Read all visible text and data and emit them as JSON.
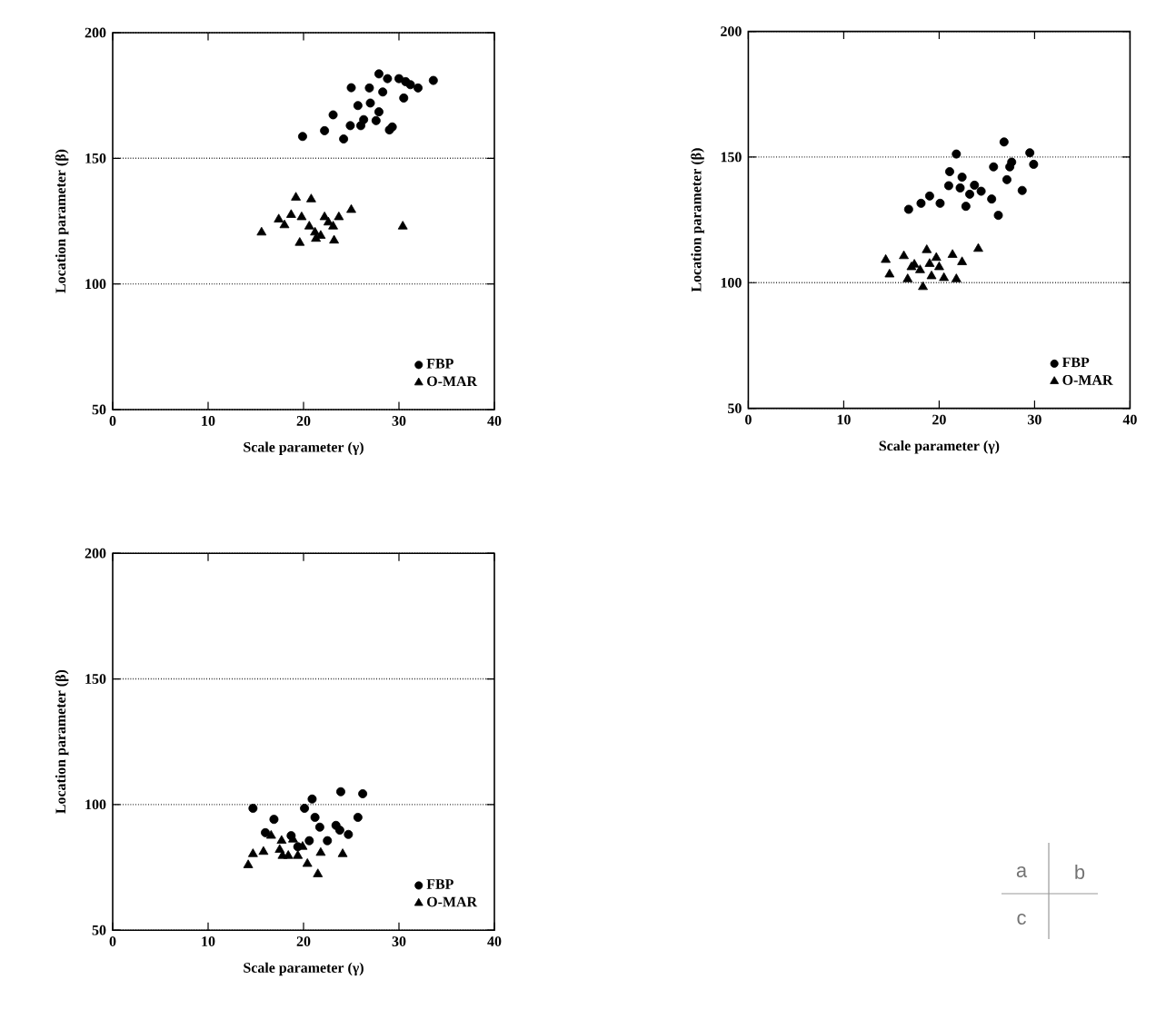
{
  "chart_data": [
    {
      "type": "scatter",
      "xlabel": "Scale parameter (γ)",
      "ylabel": "Location parameter (β)",
      "xlim": [
        0,
        40
      ],
      "ylim": [
        50,
        200
      ],
      "xticks": [
        0,
        10,
        20,
        30,
        40
      ],
      "yticks": [
        50,
        100,
        150,
        200
      ],
      "grid": "y",
      "legend": "bottom right",
      "series": [
        {
          "name": "FBP",
          "color": "#000000",
          "marker": "circle",
          "x": [
            19.9,
            22.2,
            23.1,
            24.2,
            25.0,
            24.9,
            25.7,
            26.3,
            26.9,
            27.0,
            27.6,
            27.9,
            27.9,
            28.3,
            28.8,
            29.0,
            29.3,
            30.0,
            30.7,
            30.5,
            31.2,
            32.0,
            33.6,
            26.0
          ],
          "values": [
            158.7,
            161,
            167.3,
            157.7,
            178.1,
            163,
            171,
            165.4,
            178,
            172,
            165,
            168.5,
            183.6,
            176.4,
            181.7,
            161.3,
            162.5,
            181.7,
            180.5,
            174,
            179.3,
            178,
            181,
            163
          ]
        },
        {
          "name": "O-MAR",
          "color": "#000000",
          "marker": "triangle",
          "x": [
            15.6,
            19.2,
            20.8,
            17.4,
            18.0,
            18.7,
            19.8,
            20.6,
            19.6,
            21.2,
            22.2,
            21.8,
            23.1,
            23.2,
            23.7,
            25.0,
            30.4,
            22.6,
            21.3
          ],
          "values": [
            120.5,
            134.4,
            133.7,
            125.7,
            123.4,
            127.5,
            126.6,
            122.9,
            116.4,
            120.5,
            126.6,
            119.2,
            122.9,
            117.3,
            126.6,
            129.5,
            122.9,
            124.5,
            118
          ]
        }
      ]
    },
    {
      "type": "scatter",
      "xlabel": "Scale parameter (γ)",
      "ylabel": "Location parameter (β)",
      "xlim": [
        0,
        40
      ],
      "ylim": [
        50,
        200
      ],
      "xticks": [
        0,
        10,
        20,
        30,
        40
      ],
      "yticks": [
        50,
        100,
        150,
        200
      ],
      "grid": "y",
      "legend": "bottom right",
      "series": [
        {
          "name": "FBP",
          "color": "#000000",
          "marker": "circle",
          "x": [
            16.8,
            18.1,
            19.0,
            20.1,
            21.1,
            21.0,
            21.8,
            22.4,
            22.2,
            22.8,
            23.2,
            23.7,
            24.4,
            25.7,
            25.5,
            26.2,
            26.8,
            27.1,
            27.4,
            27.6,
            28.7,
            29.5,
            29.9
          ],
          "values": [
            129.2,
            131.6,
            134.5,
            131.6,
            144.2,
            138.6,
            151.2,
            142,
            137.7,
            130.4,
            135.2,
            138.8,
            136.4,
            146.1,
            133.3,
            126.8,
            156,
            141,
            146.1,
            148,
            136.7,
            151.7,
            147.1
          ]
        },
        {
          "name": "O-MAR",
          "color": "#000000",
          "marker": "triangle",
          "x": [
            14.4,
            14.8,
            16.3,
            16.7,
            17.1,
            18.0,
            18.3,
            18.7,
            19.0,
            19.2,
            19.7,
            20.0,
            20.5,
            21.4,
            21.8,
            22.4,
            24.1,
            17.4
          ],
          "values": [
            109.1,
            103.3,
            110.6,
            101.4,
            106.2,
            105,
            98.3,
            113,
            107.5,
            102.6,
            109.9,
            106.2,
            101.9,
            111.1,
            101.4,
            108.2,
            113.5,
            107.2
          ]
        }
      ]
    },
    {
      "type": "scatter",
      "xlabel": "Scale parameter (γ)",
      "ylabel": "Location parameter (β)",
      "xlim": [
        0,
        40
      ],
      "ylim": [
        50,
        200
      ],
      "xticks": [
        0,
        10,
        20,
        30,
        40
      ],
      "yticks": [
        50,
        100,
        150,
        200
      ],
      "grid": "y",
      "legend": "bottom right",
      "series": [
        {
          "name": "FBP",
          "color": "#000000",
          "marker": "circle",
          "x": [
            14.7,
            16.9,
            16.0,
            18.7,
            20.1,
            20.9,
            21.2,
            21.7,
            20.6,
            22.5,
            23.4,
            23.9,
            24.7,
            25.7,
            26.2,
            23.8,
            19.4
          ],
          "values": [
            98.5,
            94.1,
            88.8,
            87.6,
            98.5,
            102.2,
            94.9,
            91,
            85.6,
            85.6,
            91.7,
            105.1,
            88.1,
            94.9,
            104.3,
            89.8,
            83.2
          ]
        },
        {
          "name": "O-MAR",
          "color": "#000000",
          "marker": "triangle",
          "x": [
            14.2,
            14.7,
            15.8,
            16.6,
            17.5,
            18.4,
            19.4,
            19.9,
            20.4,
            21.5,
            21.8,
            24.1,
            17.7,
            18.9,
            17.8
          ],
          "values": [
            75.9,
            80.3,
            81.2,
            87.6,
            82,
            79.6,
            79.6,
            83.2,
            76.4,
            72.3,
            80.8,
            80.3,
            85.6,
            86.1,
            79.6
          ]
        }
      ]
    },
    {
      "type": "other",
      "annotations": [
        "a",
        "b",
        "c"
      ]
    }
  ]
}
